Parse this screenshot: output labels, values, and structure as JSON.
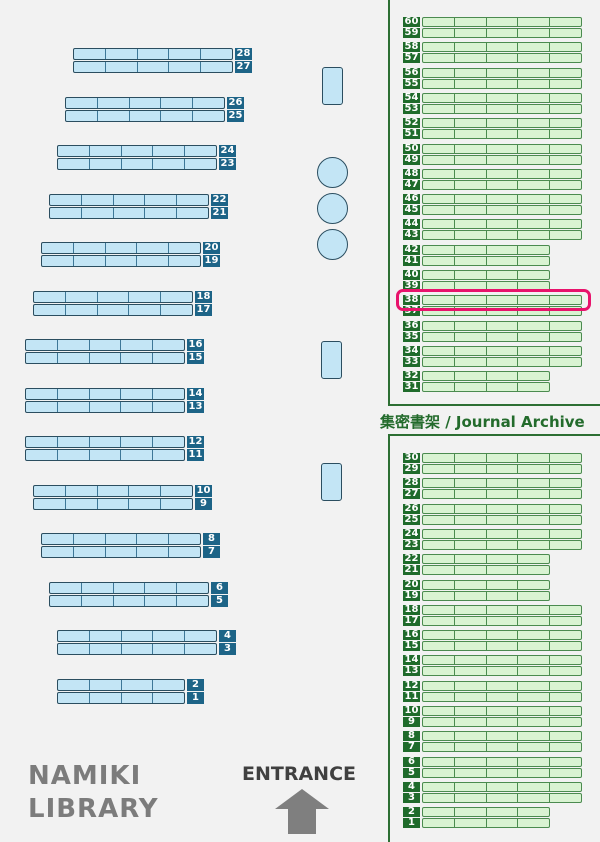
{
  "library_name": [
    "NAMIKI",
    "LIBRARY"
  ],
  "entrance_label": "ENTRANCE",
  "archive_title": "集密書架 / Journal Archive",
  "highlighted_shelf": 38,
  "colors": {
    "general_shelf": "#c3e5f5",
    "general_label": "#1d6487",
    "archive_shelf": "#d9f3d2",
    "archive_label": "#1f6b2b",
    "highlight": "#e8136c",
    "text_gray": "#7c7c7c"
  },
  "general_shelves": [
    {
      "pair": [
        28,
        27
      ],
      "sections": 5
    },
    {
      "pair": [
        26,
        25
      ],
      "sections": 5
    },
    {
      "pair": [
        24,
        23
      ],
      "sections": 5
    },
    {
      "pair": [
        22,
        21
      ],
      "sections": 5
    },
    {
      "pair": [
        20,
        19
      ],
      "sections": 5
    },
    {
      "pair": [
        18,
        17
      ],
      "sections": 5
    },
    {
      "pair": [
        16,
        15
      ],
      "sections": 5
    },
    {
      "pair": [
        14,
        13
      ],
      "sections": 5
    },
    {
      "pair": [
        12,
        11
      ],
      "sections": 5
    },
    {
      "pair": [
        10,
        9
      ],
      "sections": 5
    },
    {
      "pair": [
        8,
        7
      ],
      "sections": 5
    },
    {
      "pair": [
        6,
        5
      ],
      "sections": 5
    },
    {
      "pair": [
        4,
        3
      ],
      "sections": 5
    },
    {
      "pair": [
        2,
        1
      ],
      "sections": 4
    }
  ],
  "archive_upper": [
    {
      "pair": [
        60,
        59
      ],
      "sections": 5
    },
    {
      "pair": [
        58,
        57
      ],
      "sections": 5
    },
    {
      "pair": [
        56,
        55
      ],
      "sections": 5
    },
    {
      "pair": [
        54,
        53
      ],
      "sections": 5
    },
    {
      "pair": [
        52,
        51
      ],
      "sections": 5
    },
    {
      "pair": [
        50,
        49
      ],
      "sections": 5
    },
    {
      "pair": [
        48,
        47
      ],
      "sections": 5
    },
    {
      "pair": [
        46,
        45
      ],
      "sections": 5
    },
    {
      "pair": [
        44,
        43
      ],
      "sections": 5
    },
    {
      "pair": [
        42,
        41
      ],
      "sections": 4
    },
    {
      "pair": [
        40,
        39
      ],
      "sections": 4
    },
    {
      "pair": [
        38,
        37
      ],
      "sections": 5
    },
    {
      "pair": [
        36,
        35
      ],
      "sections": 5
    },
    {
      "pair": [
        34,
        33
      ],
      "sections": 5
    },
    {
      "pair": [
        32,
        31
      ],
      "sections": 4
    }
  ],
  "archive_lower": [
    {
      "pair": [
        30,
        29
      ],
      "sections": 5
    },
    {
      "pair": [
        28,
        27
      ],
      "sections": 5
    },
    {
      "pair": [
        26,
        25
      ],
      "sections": 5
    },
    {
      "pair": [
        24,
        23
      ],
      "sections": 5
    },
    {
      "pair": [
        22,
        21
      ],
      "sections": 4
    },
    {
      "pair": [
        20,
        19
      ],
      "sections": 4
    },
    {
      "pair": [
        18,
        17
      ],
      "sections": 5
    },
    {
      "pair": [
        16,
        15
      ],
      "sections": 5
    },
    {
      "pair": [
        14,
        13
      ],
      "sections": 5
    },
    {
      "pair": [
        12,
        11
      ],
      "sections": 5
    },
    {
      "pair": [
        10,
        9
      ],
      "sections": 5
    },
    {
      "pair": [
        8,
        7
      ],
      "sections": 5
    },
    {
      "pair": [
        6,
        5
      ],
      "sections": 5
    },
    {
      "pair": [
        4,
        3
      ],
      "sections": 5
    },
    {
      "pair": [
        2,
        1
      ],
      "sections": 4
    }
  ]
}
